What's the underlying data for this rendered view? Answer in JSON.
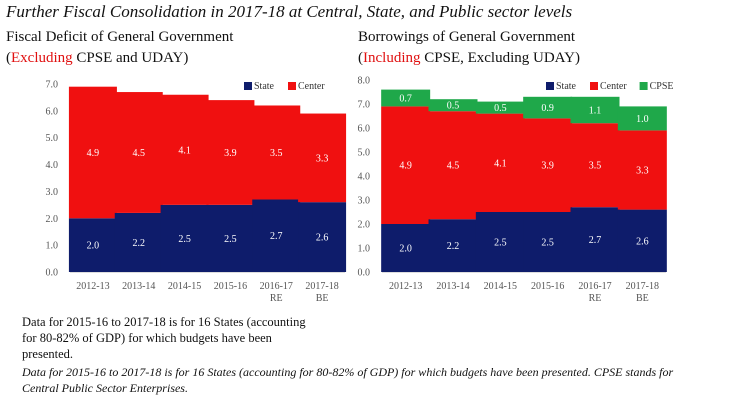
{
  "title": "Further Fiscal Consolidation in 2017-18 at Central, State, and Public sector levels",
  "left_title": {
    "line1": "Fiscal Deficit of General Government",
    "open": "(",
    "red": "Excluding",
    "rest": " CPSE and UDAY)"
  },
  "right_title": {
    "line1": "Borrowings of General Government",
    "open": "(",
    "red": "Including",
    "rest": " CPSE, Excluding UDAY)"
  },
  "note1": "Data for 2015-16 to 2017-18 is for 16 States (accounting for 80-82% of GDP) for which budgets have been presented.",
  "note2": "Data for 2015-16 to 2017-18 is for 16 States (accounting for 80-82% of GDP) for which budgets have been presented. CPSE stands for Central Public Sector Enterprises.",
  "colors": {
    "State": "#0e1c6b",
    "Center": "#f01010",
    "CPSE": "#1fa84a"
  },
  "chart_data": [
    {
      "type": "bar",
      "stacked": true,
      "categories": [
        [
          "2012-13"
        ],
        [
          "2013-14"
        ],
        [
          "2014-15"
        ],
        [
          "2015-16"
        ],
        [
          "2016-17",
          "RE"
        ],
        [
          "2017-18",
          "BE"
        ]
      ],
      "series": [
        {
          "name": "State",
          "values": [
            2.0,
            2.2,
            2.5,
            2.5,
            2.7,
            2.6
          ]
        },
        {
          "name": "Center",
          "values": [
            4.9,
            4.5,
            4.1,
            3.9,
            3.5,
            3.3
          ]
        }
      ],
      "data_labels": {
        "State": [
          "2.0",
          "2.2",
          "2.5",
          "2.5",
          "2.7",
          "2.6"
        ],
        "Center": [
          "4.9",
          "4.5",
          "4.1",
          "3.9",
          "3.5",
          "3.3"
        ]
      },
      "yticks": [
        "0.0",
        "1.0",
        "2.0",
        "3.0",
        "4.0",
        "5.0",
        "6.0",
        "7.0"
      ],
      "ylim": [
        0,
        7
      ],
      "legend": "top-right",
      "grid": false
    },
    {
      "type": "bar",
      "stacked": true,
      "categories": [
        [
          "2012-13"
        ],
        [
          "2013-14"
        ],
        [
          "2014-15"
        ],
        [
          "2015-16"
        ],
        [
          "2016-17",
          "RE"
        ],
        [
          "2017-18",
          "BE"
        ]
      ],
      "series": [
        {
          "name": "State",
          "values": [
            2.0,
            2.2,
            2.5,
            2.5,
            2.7,
            2.6
          ]
        },
        {
          "name": "Center",
          "values": [
            4.9,
            4.5,
            4.1,
            3.9,
            3.5,
            3.3
          ]
        },
        {
          "name": "CPSE",
          "values": [
            0.7,
            0.5,
            0.5,
            0.9,
            1.1,
            1.0
          ]
        }
      ],
      "data_labels": {
        "State": [
          "2.0",
          "2.2",
          "2.5",
          "2.5",
          "2.7",
          "2.6"
        ],
        "Center": [
          "4.9",
          "4.5",
          "4.1",
          "3.9",
          "3.5",
          "3.3"
        ],
        "CPSE": [
          "0.7",
          "0.5",
          "0.5",
          "0.9",
          "1.1",
          "1.0"
        ]
      },
      "yticks": [
        "0.0",
        "1.0",
        "2.0",
        "3.0",
        "4.0",
        "5.0",
        "6.0",
        "7.0",
        "8.0"
      ],
      "ylim": [
        0,
        8
      ],
      "legend": "top-right",
      "grid": false
    }
  ]
}
